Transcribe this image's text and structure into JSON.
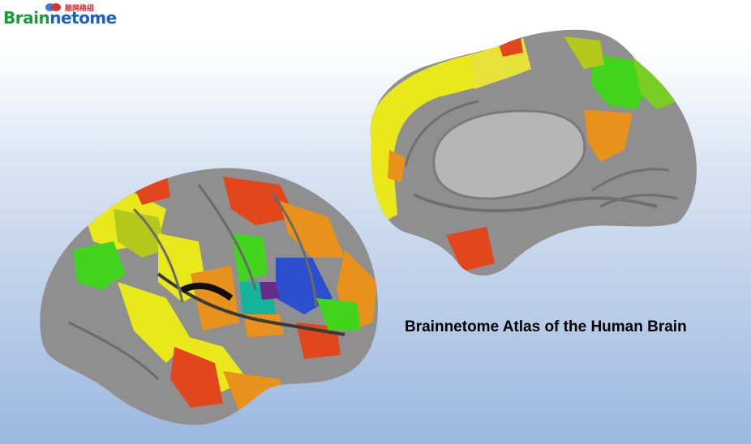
{
  "logo": {
    "brand_part1": "Brain",
    "brand_part2": "netome",
    "chinese_label": "脑网络组"
  },
  "caption": "Brainnetome Atlas of the Human Brain",
  "images": {
    "lateral_view": "brain-lateral-surface",
    "medial_view": "brain-medial-surface"
  },
  "colors": {
    "cortex_gray": "#8f8f8f",
    "yellow": "#e8e81a",
    "orange": "#e8921c",
    "red": "#e2461c",
    "green": "#43d41e",
    "teal": "#14b49a",
    "blue": "#2c4fd0",
    "purple": "#6a2a8a"
  }
}
